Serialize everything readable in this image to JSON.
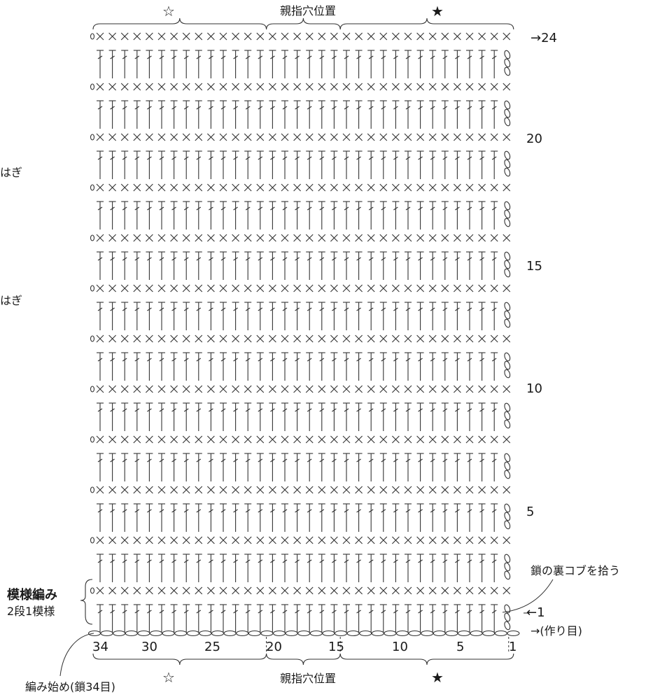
{
  "top_labels": {
    "left_symbol": "☆",
    "center": "親指穴位置",
    "right_symbol": "★"
  },
  "bottom_labels": {
    "left_symbol": "☆",
    "center": "親指穴位置",
    "right_symbol": "★"
  },
  "row_markers": {
    "top": "→24",
    "r20": "20",
    "r15": "15",
    "r10": "10",
    "r5": "5",
    "r1": "←1",
    "chain": "→(作り目)"
  },
  "side_labels": {
    "seam_1": "はぎ",
    "seam_2": "はぎ"
  },
  "pattern_label": {
    "title": "模様編み",
    "subtitle": "2段1模様"
  },
  "notes": {
    "pick_up": "鎖の裏コブを拾う",
    "start": "編み始め(鎖34目)"
  },
  "stitch_numbers": [
    "34",
    "30",
    "25",
    "20",
    "15",
    "10",
    "5",
    "1"
  ],
  "chart": {
    "stitches": 34,
    "rows": 24,
    "thumb_hole_stitches": [
      15,
      20
    ]
  }
}
